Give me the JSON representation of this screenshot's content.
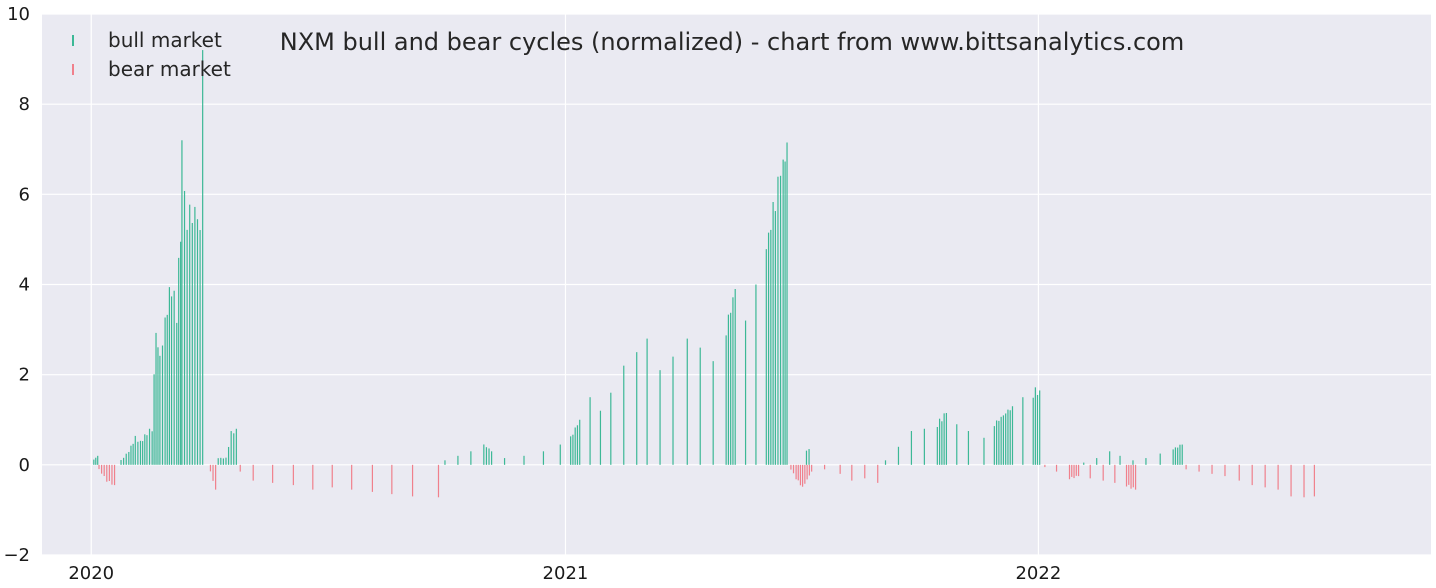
{
  "chart_data": {
    "type": "bar",
    "title": "NXM bull and bear cycles (normalized)  - chart from www.bittsanalytics.com",
    "xlabel": "",
    "ylabel": "",
    "ylim": [
      -2,
      10
    ],
    "yticks": [
      -2,
      0,
      2,
      4,
      6,
      8,
      10
    ],
    "xlim": [
      "2019-11-24",
      "2022-10-31"
    ],
    "xticks": [
      {
        "date": "2020-01-01",
        "label": "2020"
      },
      {
        "date": "2021-01-01",
        "label": "2021"
      },
      {
        "date": "2022-01-01",
        "label": "2022"
      }
    ],
    "grid": true,
    "legend_position": "top-left",
    "colors": {
      "bull": "#3cb896",
      "bear": "#f0808c",
      "background": "#eaeaf2",
      "grid": "#ffffff"
    },
    "series": [
      {
        "name": "bull market",
        "key": "bull",
        "values": [
          [
            "2020-01-03",
            0.12
          ],
          [
            "2020-01-06",
            0.2
          ],
          [
            "2020-01-24",
            0.1
          ],
          [
            "2020-01-30",
            0.3
          ],
          [
            "2020-02-04",
            0.6
          ],
          [
            "2020-02-08",
            0.5
          ],
          [
            "2020-02-13",
            0.7
          ],
          [
            "2020-02-17",
            0.8
          ],
          [
            "2020-02-20",
            3.0
          ],
          [
            "2020-02-23",
            2.3
          ],
          [
            "2020-02-27",
            3.2
          ],
          [
            "2020-03-03",
            4.0
          ],
          [
            "2020-03-07",
            3.3
          ],
          [
            "2020-03-10",
            5.3
          ],
          [
            "2020-03-11",
            7.3
          ],
          [
            "2020-03-13",
            6.1
          ],
          [
            "2020-03-15",
            5.1
          ],
          [
            "2020-03-17",
            6.0
          ],
          [
            "2020-03-19",
            5.1
          ],
          [
            "2020-03-21",
            6.1
          ],
          [
            "2020-03-23",
            5.1
          ],
          [
            "2020-03-25",
            5.6
          ],
          [
            "2020-03-27",
            9.2
          ],
          [
            "2020-04-08",
            0.15
          ],
          [
            "2020-04-14",
            0.15
          ],
          [
            "2020-04-18",
            0.7
          ],
          [
            "2020-04-22",
            0.8
          ],
          [
            "2020-09-30",
            0.1
          ],
          [
            "2020-10-10",
            0.2
          ],
          [
            "2020-10-20",
            0.3
          ],
          [
            "2020-10-30",
            0.45
          ],
          [
            "2020-11-05",
            0.3
          ],
          [
            "2020-11-15",
            0.15
          ],
          [
            "2020-11-30",
            0.2
          ],
          [
            "2020-12-15",
            0.3
          ],
          [
            "2020-12-28",
            0.45
          ],
          [
            "2021-01-05",
            0.6
          ],
          [
            "2021-01-12",
            1.0
          ],
          [
            "2021-01-20",
            1.5
          ],
          [
            "2021-01-28",
            1.2
          ],
          [
            "2021-02-05",
            1.6
          ],
          [
            "2021-02-15",
            2.2
          ],
          [
            "2021-02-25",
            2.5
          ],
          [
            "2021-03-05",
            2.8
          ],
          [
            "2021-03-15",
            2.1
          ],
          [
            "2021-03-25",
            2.4
          ],
          [
            "2021-04-05",
            2.8
          ],
          [
            "2021-04-15",
            2.6
          ],
          [
            "2021-04-25",
            2.3
          ],
          [
            "2021-05-05",
            3.0
          ],
          [
            "2021-05-12",
            3.9
          ],
          [
            "2021-05-20",
            3.2
          ],
          [
            "2021-05-28",
            4.0
          ],
          [
            "2021-06-05",
            4.8
          ],
          [
            "2021-06-12",
            5.9
          ],
          [
            "2021-06-18",
            6.8
          ],
          [
            "2021-06-21",
            7.15
          ],
          [
            "2021-07-06",
            0.3
          ],
          [
            "2021-07-08",
            0.35
          ],
          [
            "2021-09-05",
            0.1
          ],
          [
            "2021-09-15",
            0.4
          ],
          [
            "2021-09-25",
            0.75
          ],
          [
            "2021-10-05",
            0.8
          ],
          [
            "2021-10-15",
            0.9
          ],
          [
            "2021-10-22",
            1.15
          ],
          [
            "2021-10-30",
            0.9
          ],
          [
            "2021-11-08",
            0.75
          ],
          [
            "2021-11-20",
            0.6
          ],
          [
            "2021-11-28",
            0.9
          ],
          [
            "2021-12-05",
            1.1
          ],
          [
            "2021-12-12",
            1.3
          ],
          [
            "2021-12-20",
            1.5
          ],
          [
            "2021-12-28",
            1.6
          ],
          [
            "2022-01-02",
            1.65
          ],
          [
            "2022-02-05",
            0.05
          ],
          [
            "2022-02-15",
            0.15
          ],
          [
            "2022-02-25",
            0.3
          ],
          [
            "2022-03-05",
            0.2
          ],
          [
            "2022-03-15",
            0.1
          ],
          [
            "2022-03-25",
            0.15
          ],
          [
            "2022-04-05",
            0.25
          ],
          [
            "2022-04-15",
            0.35
          ],
          [
            "2022-04-22",
            0.45
          ]
        ]
      },
      {
        "name": "bear market",
        "key": "bear",
        "values": [
          [
            "2020-01-07",
            -0.1
          ],
          [
            "2020-01-13",
            -0.35
          ],
          [
            "2020-01-19",
            -0.45
          ],
          [
            "2020-04-02",
            -0.15
          ],
          [
            "2020-04-06",
            -0.55
          ],
          [
            "2020-04-25",
            -0.15
          ],
          [
            "2020-05-05",
            -0.35
          ],
          [
            "2020-05-20",
            -0.4
          ],
          [
            "2020-06-05",
            -0.45
          ],
          [
            "2020-06-20",
            -0.55
          ],
          [
            "2020-07-05",
            -0.5
          ],
          [
            "2020-07-20",
            -0.55
          ],
          [
            "2020-08-05",
            -0.6
          ],
          [
            "2020-08-20",
            -0.65
          ],
          [
            "2020-09-05",
            -0.7
          ],
          [
            "2020-09-25",
            -0.72
          ],
          [
            "2021-06-24",
            -0.1
          ],
          [
            "2021-06-28",
            -0.3
          ],
          [
            "2021-07-03",
            -0.5
          ],
          [
            "2021-07-10",
            -0.15
          ],
          [
            "2021-07-20",
            -0.1
          ],
          [
            "2021-08-01",
            -0.2
          ],
          [
            "2021-08-10",
            -0.35
          ],
          [
            "2021-08-20",
            -0.3
          ],
          [
            "2021-08-30",
            -0.4
          ],
          [
            "2022-01-06",
            -0.05
          ],
          [
            "2022-01-15",
            -0.15
          ],
          [
            "2022-01-25",
            -0.3
          ],
          [
            "2022-02-01",
            -0.25
          ],
          [
            "2022-02-10",
            -0.3
          ],
          [
            "2022-02-20",
            -0.35
          ],
          [
            "2022-03-01",
            -0.4
          ],
          [
            "2022-03-10",
            -0.45
          ],
          [
            "2022-03-17",
            -0.55
          ],
          [
            "2022-04-25",
            -0.1
          ],
          [
            "2022-05-05",
            -0.15
          ],
          [
            "2022-05-15",
            -0.2
          ],
          [
            "2022-05-25",
            -0.25
          ],
          [
            "2022-06-05",
            -0.35
          ],
          [
            "2022-06-15",
            -0.45
          ],
          [
            "2022-06-25",
            -0.5
          ],
          [
            "2022-07-05",
            -0.55
          ],
          [
            "2022-07-15",
            -0.7
          ],
          [
            "2022-07-25",
            -0.72
          ],
          [
            "2022-08-02",
            -0.7
          ]
        ]
      }
    ]
  }
}
